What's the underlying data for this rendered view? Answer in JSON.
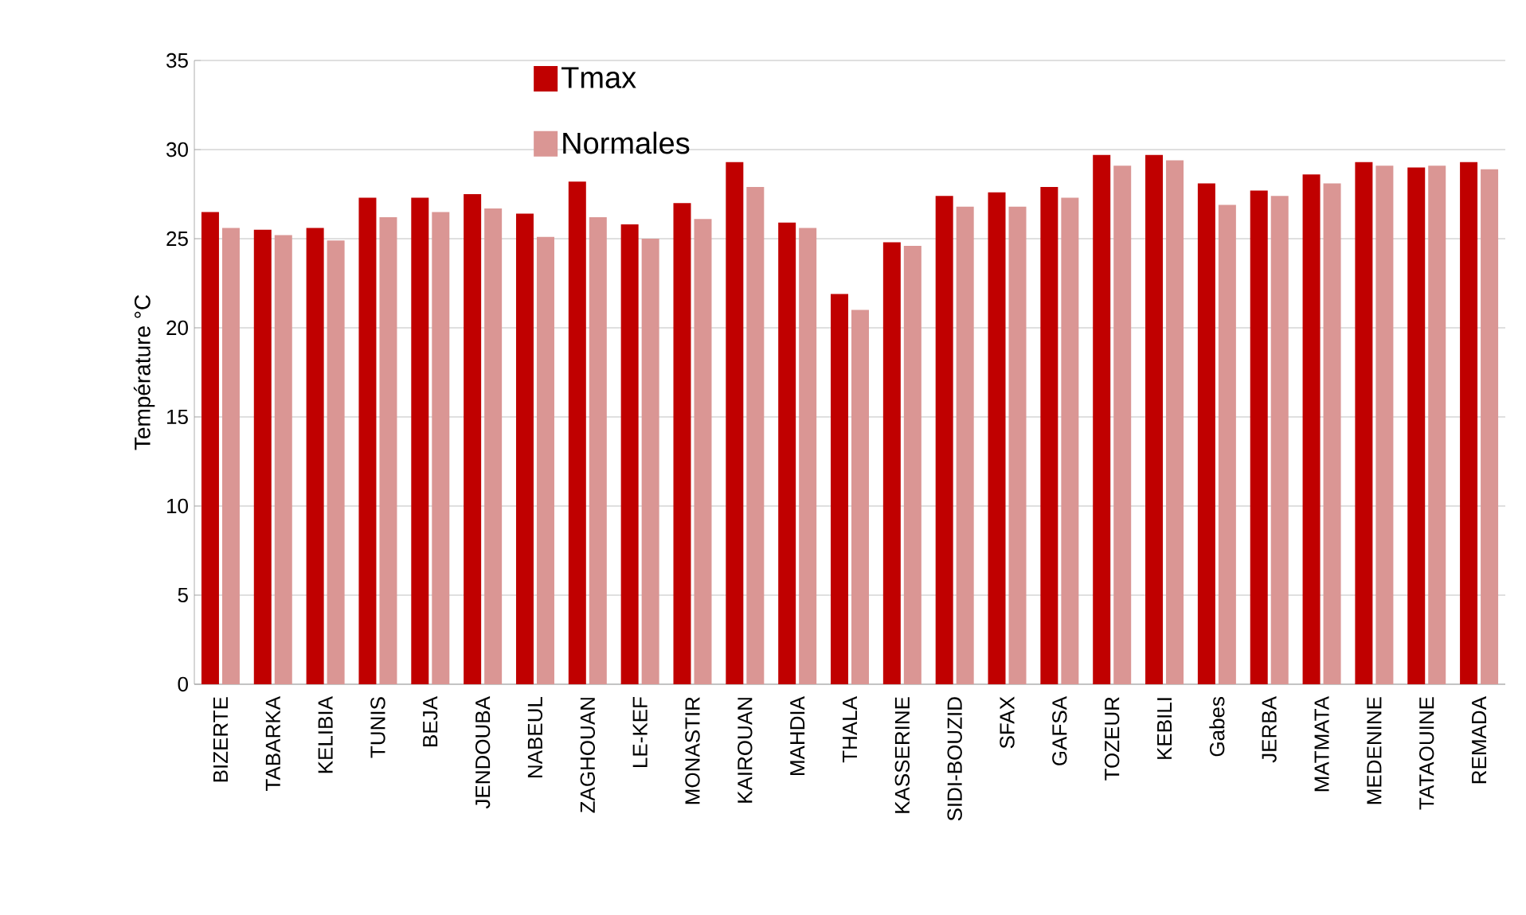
{
  "chart_data": {
    "type": "bar",
    "ylabel": "Température °C",
    "categories": [
      "BIZERTE",
      "TABARKA",
      "KELIBIA",
      "TUNIS",
      "BEJA",
      "JENDOUBA",
      "NABEUL",
      "ZAGHOUAN",
      "LE-KEF",
      "MONASTIR",
      "KAIROUAN",
      "MAHDIA",
      "THALA",
      "KASSERINE",
      "SIDI-BOUZID",
      "SFAX",
      "GAFSA",
      "TOZEUR",
      "KEBILI",
      "Gabes",
      "JERBA",
      "MATMATA",
      "MEDENINE",
      "TATAOUINE",
      "REMADA"
    ],
    "series": [
      {
        "name": "Tmax",
        "color": "#c00000",
        "values": [
          26.5,
          25.5,
          25.6,
          27.3,
          27.3,
          27.5,
          26.4,
          28.2,
          25.8,
          27.0,
          29.3,
          25.9,
          21.9,
          24.8,
          27.4,
          27.6,
          27.9,
          29.7,
          29.7,
          28.1,
          27.7,
          28.6,
          29.3,
          29.0,
          29.3
        ]
      },
      {
        "name": "Normales",
        "color": "#da9694",
        "values": [
          25.6,
          25.2,
          24.9,
          26.2,
          26.5,
          26.7,
          25.1,
          26.2,
          25.0,
          26.1,
          27.9,
          25.6,
          21.0,
          24.6,
          26.8,
          26.8,
          27.3,
          29.1,
          29.4,
          26.9,
          27.4,
          28.1,
          29.1,
          29.1,
          28.9
        ]
      }
    ],
    "ylim": [
      0,
      35
    ],
    "yticks": [
      0,
      5,
      10,
      15,
      20,
      25,
      30,
      35
    ],
    "grid": "y",
    "legend": "top"
  }
}
